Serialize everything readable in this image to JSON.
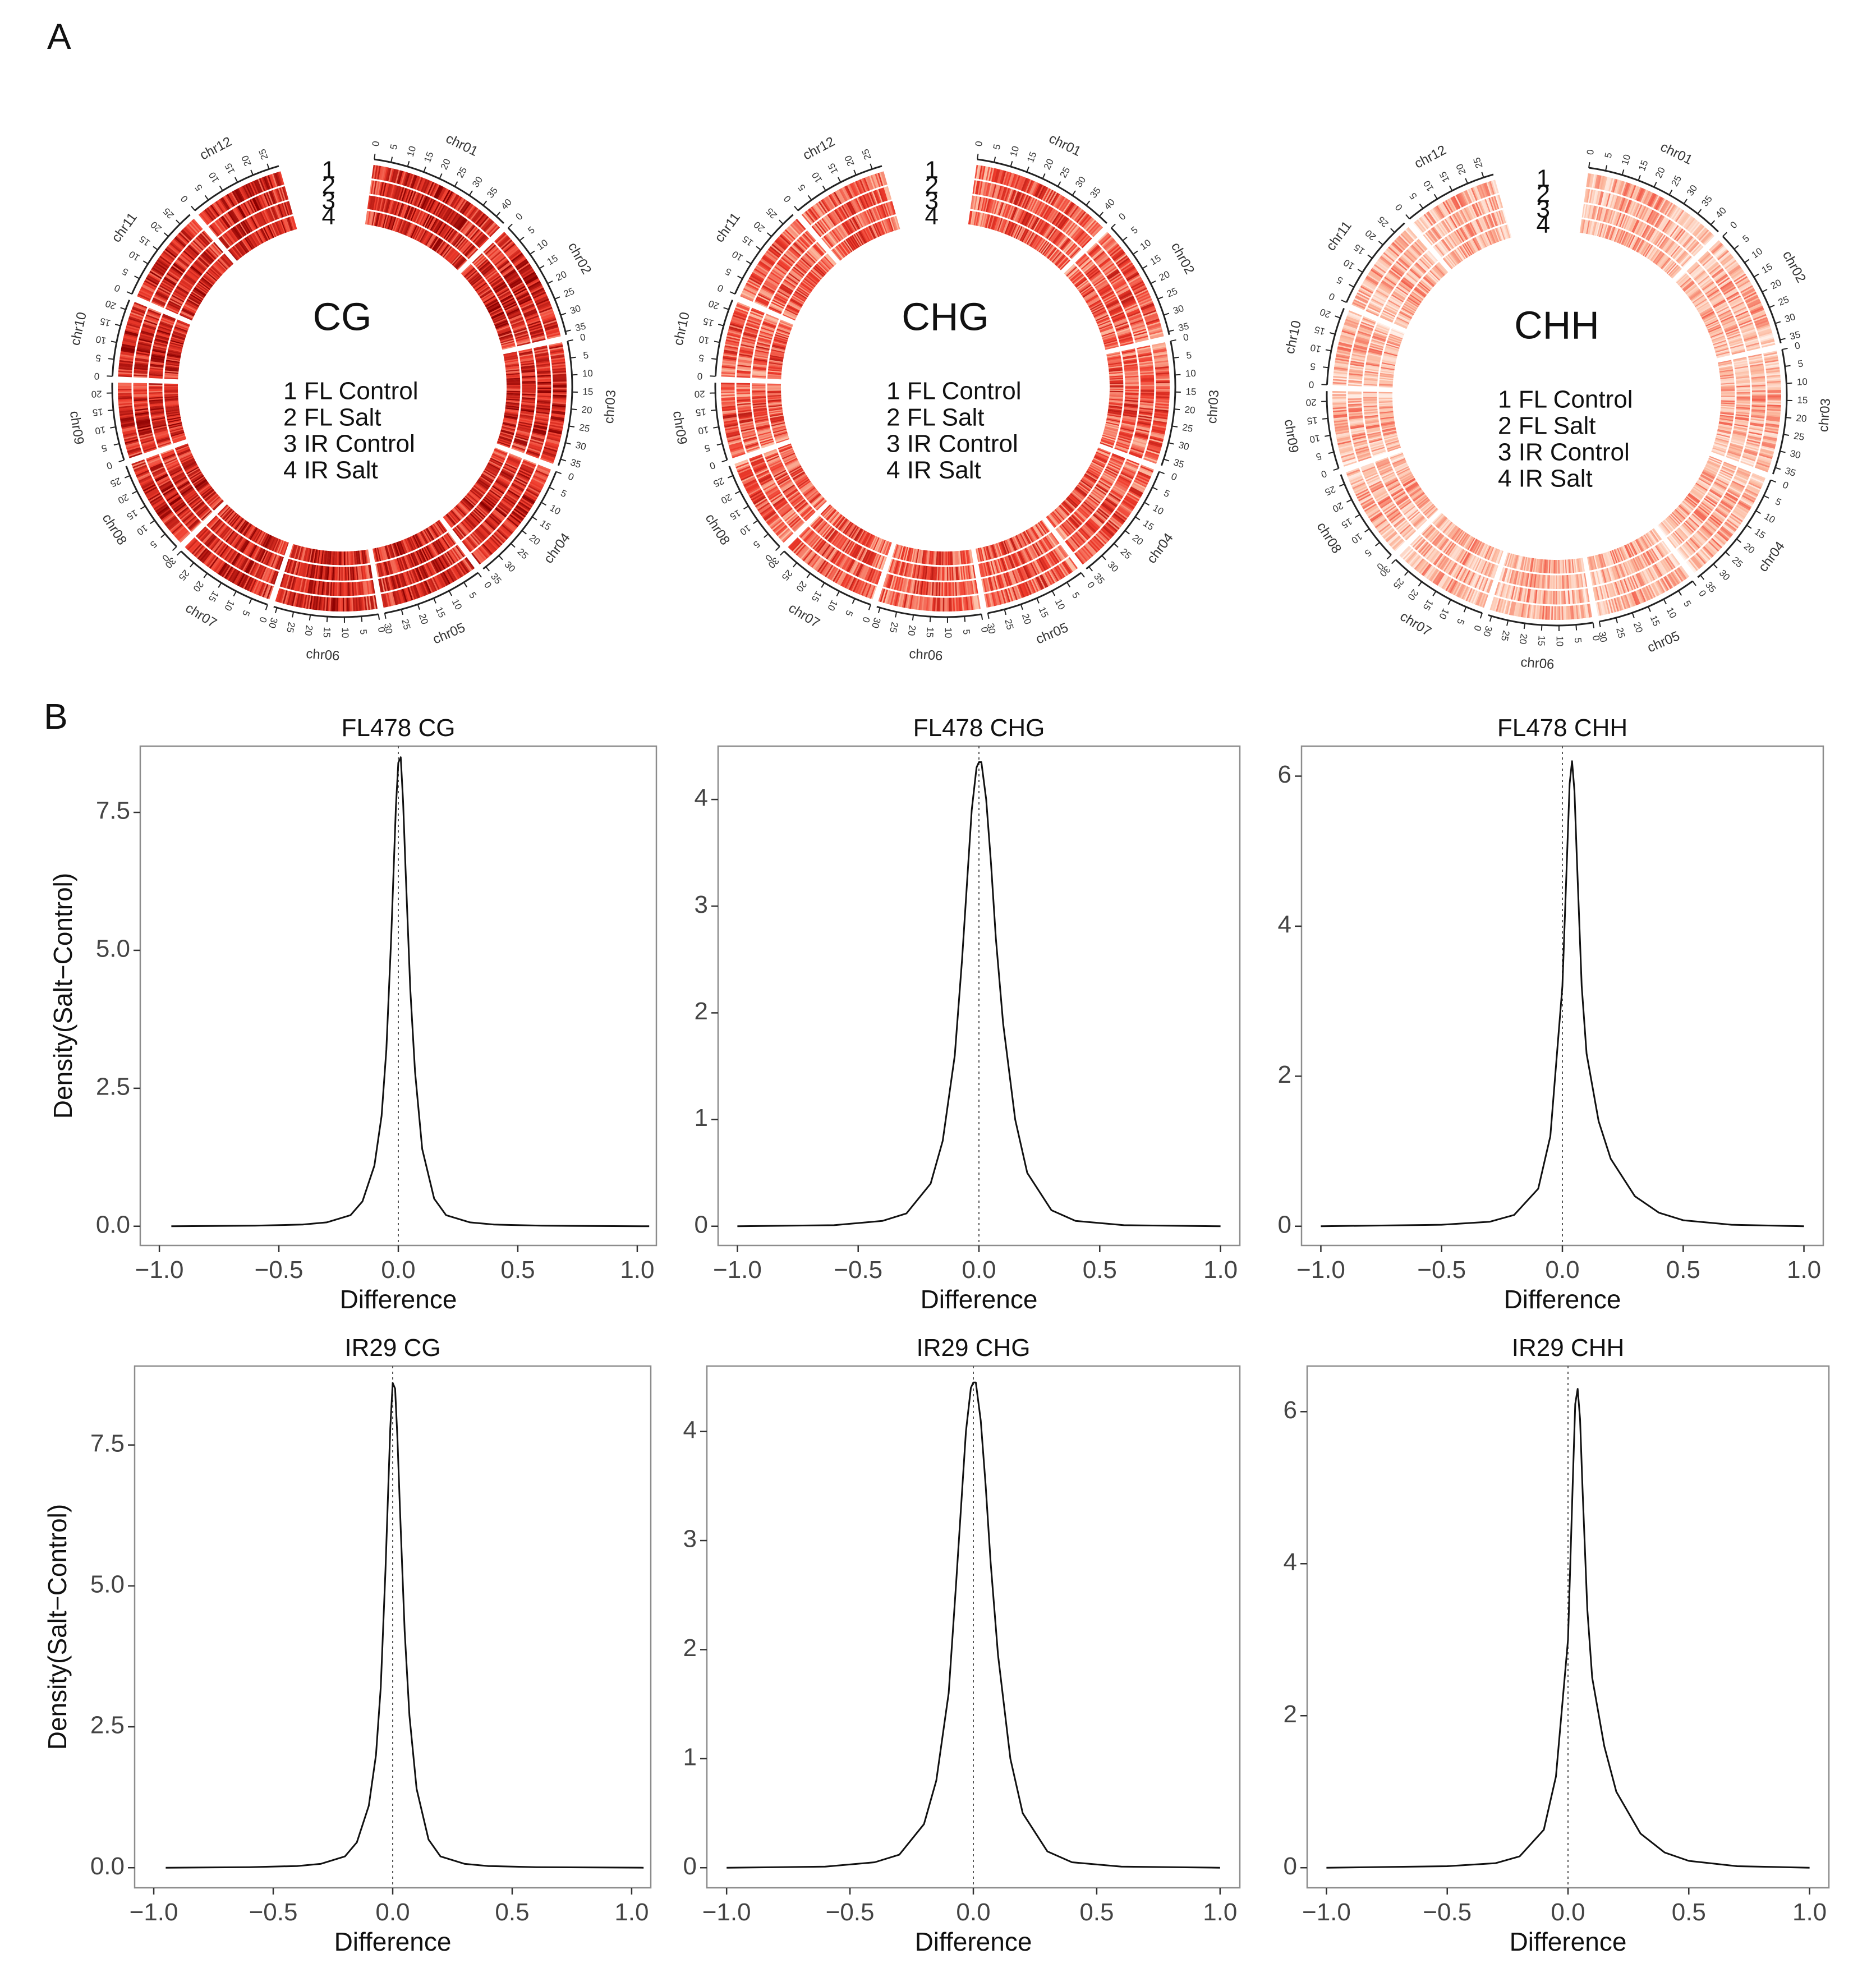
{
  "panels": {
    "a": "A",
    "b": "B"
  },
  "circos": [
    {
      "title": "CG",
      "legend": [
        "1 FL Control",
        "2 FL Salt",
        "3 IR Control",
        "4 IR Salt"
      ],
      "track_numbers": [
        "1",
        "2",
        "3",
        "4"
      ],
      "intensity": 0.8
    },
    {
      "title": "CHG",
      "legend": [
        "1 FL Control",
        "2 FL Salt",
        "3 IR Control",
        "4 IR Salt"
      ],
      "track_numbers": [
        "1",
        "2",
        "3",
        "4"
      ],
      "intensity": 0.62
    },
    {
      "title": "CHH",
      "legend": [
        "1 FL Control",
        "2 FL Salt",
        "3 IR Control",
        "4 IR Salt"
      ],
      "track_numbers": [
        "1",
        "2",
        "3",
        "4"
      ],
      "intensity": 0.35
    }
  ],
  "chromosomes": [
    {
      "name": "chr01",
      "length": 43,
      "ticks": [
        0,
        5,
        10,
        15,
        20,
        25,
        30,
        35,
        40
      ]
    },
    {
      "name": "chr02",
      "length": 36,
      "ticks": [
        0,
        5,
        10,
        15,
        20,
        25,
        30,
        35
      ]
    },
    {
      "name": "chr03",
      "length": 37,
      "ticks": [
        0,
        5,
        10,
        15,
        20,
        25,
        30,
        35
      ]
    },
    {
      "name": "chr04",
      "length": 36,
      "ticks": [
        0,
        5,
        10,
        15,
        20,
        25,
        30,
        35
      ]
    },
    {
      "name": "chr05",
      "length": 30,
      "ticks": [
        0,
        5,
        10,
        15,
        20,
        25,
        30
      ]
    },
    {
      "name": "chr06",
      "length": 31,
      "ticks": [
        0,
        5,
        10,
        15,
        20,
        25,
        30
      ]
    },
    {
      "name": "chr07",
      "length": 30,
      "ticks": [
        0,
        5,
        10,
        15,
        20,
        25,
        30
      ]
    },
    {
      "name": "chr08",
      "length": 28,
      "ticks": [
        0,
        5,
        10,
        15,
        20,
        25
      ]
    },
    {
      "name": "chr09",
      "length": 23,
      "ticks": [
        0,
        5,
        10,
        15,
        20
      ]
    },
    {
      "name": "chr10",
      "length": 23,
      "ticks": [
        0,
        5,
        10,
        15,
        20
      ]
    },
    {
      "name": "chr11",
      "length": 29,
      "ticks": [
        0,
        5,
        10,
        15,
        20,
        25
      ]
    },
    {
      "name": "chr12",
      "length": 28,
      "ticks": [
        0,
        5,
        10,
        15,
        20,
        25
      ]
    }
  ],
  "chart_data": [
    {
      "type": "line",
      "title": "FL478 CG",
      "xlabel": "Difference",
      "ylabel": "Density(Salt−Control)",
      "xlim": [
        -1.0,
        1.0
      ],
      "ylim": [
        0,
        8.7
      ],
      "x_ticks": [
        -1.0,
        -0.5,
        0.0,
        0.5,
        1.0
      ],
      "x_tick_labels": [
        "−1.0",
        "−0.5",
        "0.0",
        "0.5",
        "1.0"
      ],
      "y_ticks": [
        0.0,
        2.5,
        5.0,
        7.5
      ],
      "y_tick_labels": [
        "0.0",
        "2.5",
        "5.0",
        "7.5"
      ],
      "reference_line_x": 0.0,
      "grid": false,
      "x": [
        -0.95,
        -0.6,
        -0.4,
        -0.3,
        -0.2,
        -0.15,
        -0.1,
        -0.07,
        -0.05,
        -0.03,
        -0.01,
        0.0,
        0.01,
        0.02,
        0.03,
        0.05,
        0.07,
        0.1,
        0.15,
        0.2,
        0.3,
        0.4,
        0.6,
        1.05
      ],
      "y": [
        0.0,
        0.01,
        0.03,
        0.07,
        0.2,
        0.45,
        1.1,
        2.0,
        3.2,
        5.2,
        7.6,
        8.4,
        8.5,
        7.7,
        6.5,
        4.3,
        2.8,
        1.4,
        0.5,
        0.2,
        0.07,
        0.03,
        0.01,
        0.0
      ]
    },
    {
      "type": "line",
      "title": "FL478 CHG",
      "xlabel": "Difference",
      "ylabel": "",
      "xlim": [
        -1.0,
        1.0
      ],
      "ylim": [
        0,
        4.5
      ],
      "x_ticks": [
        -1.0,
        -0.5,
        0.0,
        0.5,
        1.0
      ],
      "x_tick_labels": [
        "−1.0",
        "−0.5",
        "0.0",
        "0.5",
        "1.0"
      ],
      "y_ticks": [
        0,
        1,
        2,
        3,
        4
      ],
      "y_tick_labels": [
        "0",
        "1",
        "2",
        "3",
        "4"
      ],
      "reference_line_x": 0.0,
      "grid": false,
      "x": [
        -1.0,
        -0.6,
        -0.4,
        -0.3,
        -0.2,
        -0.15,
        -0.1,
        -0.07,
        -0.05,
        -0.03,
        -0.01,
        0.0,
        0.01,
        0.03,
        0.05,
        0.07,
        0.1,
        0.15,
        0.2,
        0.3,
        0.4,
        0.6,
        1.0
      ],
      "y": [
        0.0,
        0.01,
        0.05,
        0.12,
        0.4,
        0.8,
        1.6,
        2.5,
        3.2,
        3.9,
        4.3,
        4.35,
        4.35,
        4.0,
        3.4,
        2.7,
        1.9,
        1.0,
        0.5,
        0.15,
        0.05,
        0.01,
        0.0
      ]
    },
    {
      "type": "line",
      "title": "FL478 CHH",
      "xlabel": "Difference",
      "ylabel": "",
      "xlim": [
        -1.0,
        1.0
      ],
      "ylim": [
        0,
        6.4
      ],
      "x_ticks": [
        -1.0,
        -0.5,
        0.0,
        0.5,
        1.0
      ],
      "x_tick_labels": [
        "−1.0",
        "−0.5",
        "0.0",
        "0.5",
        "1.0"
      ],
      "y_ticks": [
        0,
        2,
        4,
        6
      ],
      "y_tick_labels": [
        "0",
        "2",
        "4",
        "6"
      ],
      "reference_line_x": 0.0,
      "grid": false,
      "x": [
        -1.0,
        -0.5,
        -0.3,
        -0.2,
        -0.1,
        -0.05,
        0.0,
        0.02,
        0.03,
        0.04,
        0.05,
        0.06,
        0.08,
        0.1,
        0.15,
        0.2,
        0.3,
        0.4,
        0.5,
        0.7,
        1.0
      ],
      "y": [
        0.0,
        0.02,
        0.06,
        0.15,
        0.5,
        1.2,
        3.2,
        5.0,
        5.9,
        6.2,
        5.8,
        4.9,
        3.2,
        2.3,
        1.4,
        0.9,
        0.4,
        0.18,
        0.08,
        0.02,
        0.0
      ]
    },
    {
      "type": "line",
      "title": "IR29 CG",
      "xlabel": "Difference",
      "ylabel": "Density(Salt−Control)",
      "xlim": [
        -1.0,
        1.0
      ],
      "ylim": [
        0,
        8.9
      ],
      "x_ticks": [
        -1.0,
        -0.5,
        0.0,
        0.5,
        1.0
      ],
      "x_tick_labels": [
        "−1.0",
        "−0.5",
        "0.0",
        "0.5",
        "1.0"
      ],
      "y_ticks": [
        0.0,
        2.5,
        5.0,
        7.5
      ],
      "y_tick_labels": [
        "0.0",
        "2.5",
        "5.0",
        "7.5"
      ],
      "reference_line_x": 0.0,
      "grid": false,
      "x": [
        -0.95,
        -0.6,
        -0.4,
        -0.3,
        -0.2,
        -0.15,
        -0.1,
        -0.07,
        -0.05,
        -0.03,
        -0.01,
        0.0,
        0.01,
        0.02,
        0.03,
        0.05,
        0.07,
        0.1,
        0.15,
        0.2,
        0.3,
        0.4,
        0.6,
        1.05
      ],
      "y": [
        0.0,
        0.01,
        0.03,
        0.07,
        0.2,
        0.45,
        1.1,
        2.0,
        3.2,
        5.3,
        7.8,
        8.6,
        8.5,
        7.6,
        6.4,
        4.2,
        2.7,
        1.4,
        0.5,
        0.2,
        0.07,
        0.03,
        0.01,
        0.0
      ]
    },
    {
      "type": "line",
      "title": "IR29 CHG",
      "xlabel": "Difference",
      "ylabel": "",
      "xlim": [
        -1.0,
        1.0
      ],
      "ylim": [
        0,
        4.6
      ],
      "x_ticks": [
        -1.0,
        -0.5,
        0.0,
        0.5,
        1.0
      ],
      "x_tick_labels": [
        "−1.0",
        "−0.5",
        "0.0",
        "0.5",
        "1.0"
      ],
      "y_ticks": [
        0,
        1,
        2,
        3,
        4
      ],
      "y_tick_labels": [
        "0",
        "1",
        "2",
        "3",
        "4"
      ],
      "reference_line_x": 0.0,
      "grid": false,
      "x": [
        -1.0,
        -0.6,
        -0.4,
        -0.3,
        -0.2,
        -0.15,
        -0.1,
        -0.07,
        -0.05,
        -0.03,
        -0.01,
        0.0,
        0.01,
        0.03,
        0.05,
        0.07,
        0.1,
        0.15,
        0.2,
        0.3,
        0.4,
        0.6,
        1.0
      ],
      "y": [
        0.0,
        0.01,
        0.05,
        0.12,
        0.4,
        0.8,
        1.6,
        2.6,
        3.3,
        4.0,
        4.4,
        4.45,
        4.45,
        4.1,
        3.5,
        2.8,
        1.95,
        1.0,
        0.5,
        0.15,
        0.05,
        0.01,
        0.0
      ]
    },
    {
      "type": "line",
      "title": "IR29 CHH",
      "xlabel": "Difference",
      "ylabel": "",
      "xlim": [
        -1.0,
        1.0
      ],
      "ylim": [
        0,
        6.6
      ],
      "x_ticks": [
        -1.0,
        -0.5,
        0.0,
        0.5,
        1.0
      ],
      "x_tick_labels": [
        "−1.0",
        "−0.5",
        "0.0",
        "0.5",
        "1.0"
      ],
      "y_ticks": [
        0,
        2,
        4,
        6
      ],
      "y_tick_labels": [
        "0",
        "2",
        "4",
        "6"
      ],
      "reference_line_x": 0.0,
      "grid": false,
      "x": [
        -1.0,
        -0.5,
        -0.3,
        -0.2,
        -0.1,
        -0.05,
        0.0,
        0.02,
        0.03,
        0.04,
        0.05,
        0.06,
        0.08,
        0.1,
        0.15,
        0.2,
        0.3,
        0.4,
        0.5,
        0.7,
        1.0
      ],
      "y": [
        0.0,
        0.02,
        0.06,
        0.15,
        0.5,
        1.2,
        3.0,
        5.1,
        6.1,
        6.3,
        5.9,
        5.0,
        3.4,
        2.5,
        1.6,
        1.0,
        0.45,
        0.2,
        0.09,
        0.02,
        0.0
      ]
    }
  ],
  "colors": {
    "heat_light": "#fff0ea",
    "heat_dark": "#8b0000",
    "line": "#111111",
    "axis": "#888888"
  }
}
